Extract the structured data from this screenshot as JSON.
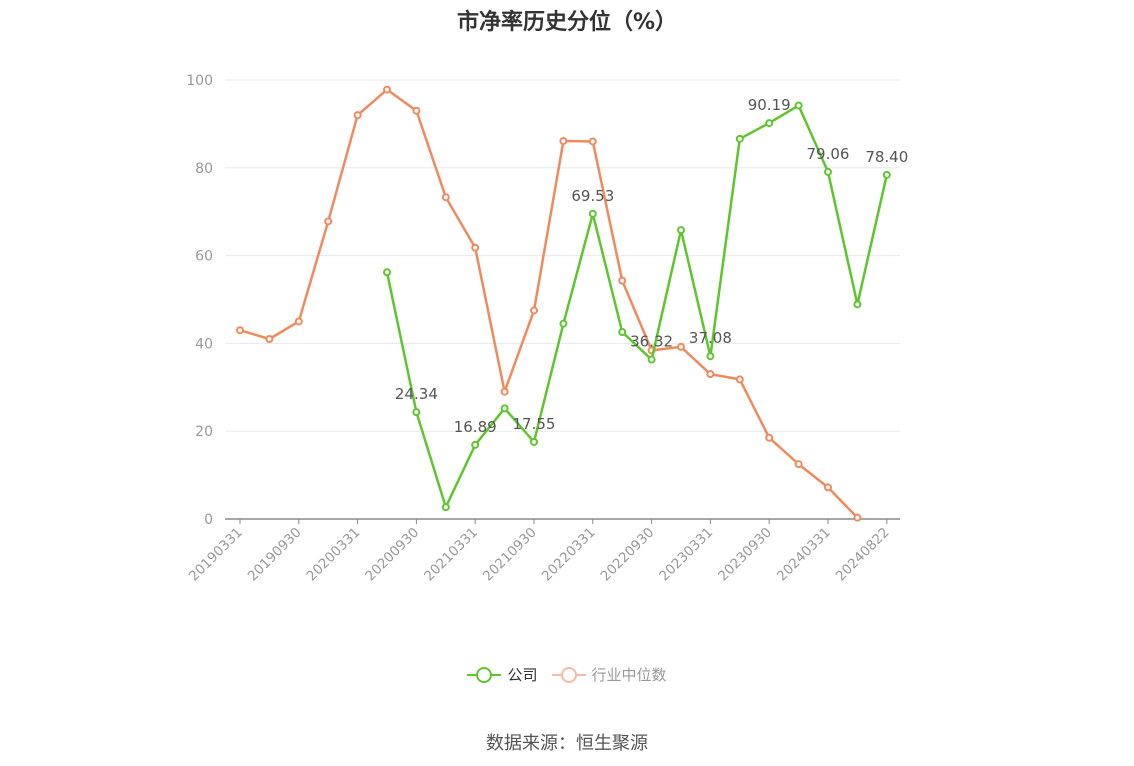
{
  "title": "市净率历史分位（%）",
  "source": "数据来源：恒生聚源",
  "colors": {
    "company": "#5dc62c",
    "industry": "#f08a5d",
    "industry_legend": "#f7b9a0",
    "grid": "#e6e8ee",
    "axis": "#8a8a8a",
    "tick_text": "#999999",
    "label_text": "#555555"
  },
  "legend": [
    {
      "name": "公司",
      "color": "#5dc62c"
    },
    {
      "name": "行业中位数",
      "color": "#f7b9a0"
    }
  ],
  "chart_data": {
    "type": "line",
    "title": "市净率历史分位（%）",
    "ylim": [
      0,
      100
    ],
    "yticks": [
      0,
      20,
      40,
      60,
      80,
      100
    ],
    "grid": true,
    "legend_position": "bottom",
    "x": [
      "20190331",
      "20190630",
      "20190930",
      "20191231",
      "20200331",
      "20200630",
      "20200930",
      "20201231",
      "20210331",
      "20210630",
      "20210930",
      "20211231",
      "20220331",
      "20220630",
      "20220930",
      "20221231",
      "20230331",
      "20230630",
      "20230930",
      "20231231",
      "20240331",
      "20240630",
      "20240822"
    ],
    "xtick_labels": [
      "20190331",
      "20190930",
      "20200331",
      "20200930",
      "20210331",
      "20210930",
      "20220331",
      "20220930",
      "20230331",
      "20230930",
      "20240331",
      "20240822"
    ],
    "series": [
      {
        "name": "公司",
        "values": [
          null,
          null,
          null,
          null,
          null,
          56.2,
          24.34,
          2.7,
          16.89,
          25.2,
          17.55,
          44.5,
          69.53,
          42.6,
          36.32,
          65.8,
          37.08,
          86.6,
          90.19,
          94.2,
          79.06,
          48.9,
          78.4
        ],
        "labels": [
          {
            "index": 6,
            "text": "24.34"
          },
          {
            "index": 8,
            "text": "16.89"
          },
          {
            "index": 10,
            "text": "17.55"
          },
          {
            "index": 12,
            "text": "69.53"
          },
          {
            "index": 14,
            "text": "36.32"
          },
          {
            "index": 16,
            "text": "37.08"
          },
          {
            "index": 18,
            "text": "90.19"
          },
          {
            "index": 20,
            "text": "79.06"
          },
          {
            "index": 22,
            "text": "78.40"
          }
        ]
      },
      {
        "name": "行业中位数",
        "values": [
          43.0,
          41.0,
          45.0,
          67.8,
          92.0,
          97.8,
          93.0,
          73.3,
          61.8,
          29.0,
          47.5,
          86.1,
          86.0,
          54.3,
          38.4,
          39.2,
          33.0,
          31.8,
          18.5,
          12.5,
          7.2,
          0.3,
          null
        ]
      }
    ]
  }
}
